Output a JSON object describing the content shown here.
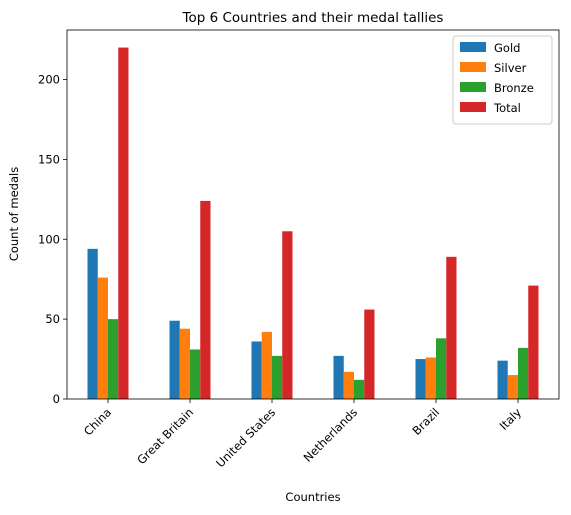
{
  "chart_data": {
    "type": "bar",
    "title": "Top 6 Countries and their medal tallies",
    "xlabel": "Countries",
    "ylabel": "Count of medals",
    "categories": [
      "China",
      "Great Britain",
      "United States",
      "Netherlands",
      "Brazil",
      "Italy"
    ],
    "series": [
      {
        "name": "Gold",
        "color": "#1f77b4",
        "values": [
          94,
          49,
          36,
          27,
          25,
          24
        ]
      },
      {
        "name": "Silver",
        "color": "#ff7f0e",
        "values": [
          76,
          44,
          42,
          17,
          26,
          15
        ]
      },
      {
        "name": "Bronze",
        "color": "#2ca02c",
        "values": [
          50,
          31,
          27,
          12,
          38,
          32
        ]
      },
      {
        "name": "Total",
        "color": "#d62728",
        "values": [
          220,
          124,
          105,
          56,
          89,
          71
        ]
      }
    ],
    "ylim": [
      0,
      231
    ],
    "yticks": [
      0,
      50,
      100,
      150,
      200
    ],
    "legend_position": "top-right",
    "grid": false
  }
}
